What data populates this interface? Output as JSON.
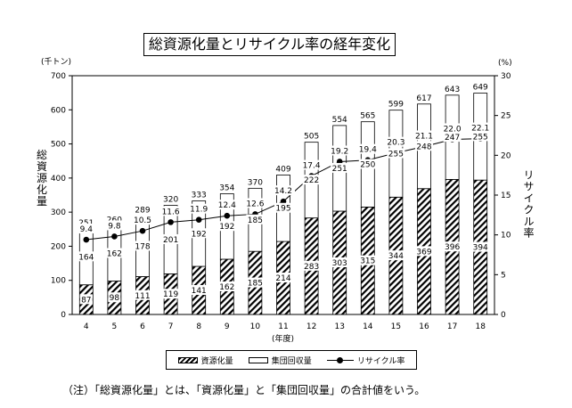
{
  "title": "総資源化量とリサイクル率の経年変化",
  "note": "（注）「総資源化量」とは、「資源化量」と「集団回収量」の合計値をいう。",
  "chart_data": {
    "type": "bar",
    "categories": [
      "4",
      "5",
      "6",
      "7",
      "8",
      "9",
      "10",
      "11",
      "12",
      "13",
      "14",
      "15",
      "16",
      "17",
      "18"
    ],
    "xlabel": "(年度)",
    "ylabel_left": "総資源化量",
    "unit_left": "(千トン)",
    "ylabel_right": "リサイクル率",
    "unit_right": "(%)",
    "ylim_left": [
      0,
      700
    ],
    "yticks_left": [
      "0",
      "100",
      "200",
      "300",
      "400",
      "500",
      "600",
      "700"
    ],
    "ylim_right": [
      0,
      30
    ],
    "yticks_right": [
      "0",
      "5",
      "10",
      "15",
      "20",
      "25",
      "30"
    ],
    "series": [
      {
        "name": "資源化量",
        "style": "hatched",
        "stack": "total",
        "values": [
          87,
          98,
          111,
          119,
          141,
          162,
          185,
          214,
          283,
          303,
          315,
          344,
          369,
          396,
          394
        ]
      },
      {
        "name": "集団回収量",
        "style": "white",
        "stack": "total",
        "values": [
          164,
          162,
          178,
          201,
          192,
          192,
          185,
          195,
          222,
          251,
          250,
          255,
          248,
          247,
          255
        ]
      },
      {
        "name": "リサイクル率",
        "style": "line-marker",
        "axis": "right",
        "values": [
          9.4,
          9.8,
          10.5,
          11.6,
          11.9,
          12.4,
          12.6,
          14.2,
          17.4,
          19.2,
          19.4,
          20.3,
          21.1,
          22.0,
          22.1
        ],
        "labels": [
          "9.4",
          "9.8",
          "10.5",
          "11.6",
          "11.9",
          "12.4",
          "12.6",
          "14.2",
          "17.4",
          "19.2",
          "19.4",
          "20.3",
          "21.1",
          "22.0",
          "22.1"
        ]
      }
    ],
    "totals": [
      251,
      260,
      289,
      320,
      333,
      354,
      370,
      409,
      505,
      554,
      565,
      599,
      617,
      643,
      649
    ],
    "legend_position": "bottom",
    "grid": false
  }
}
